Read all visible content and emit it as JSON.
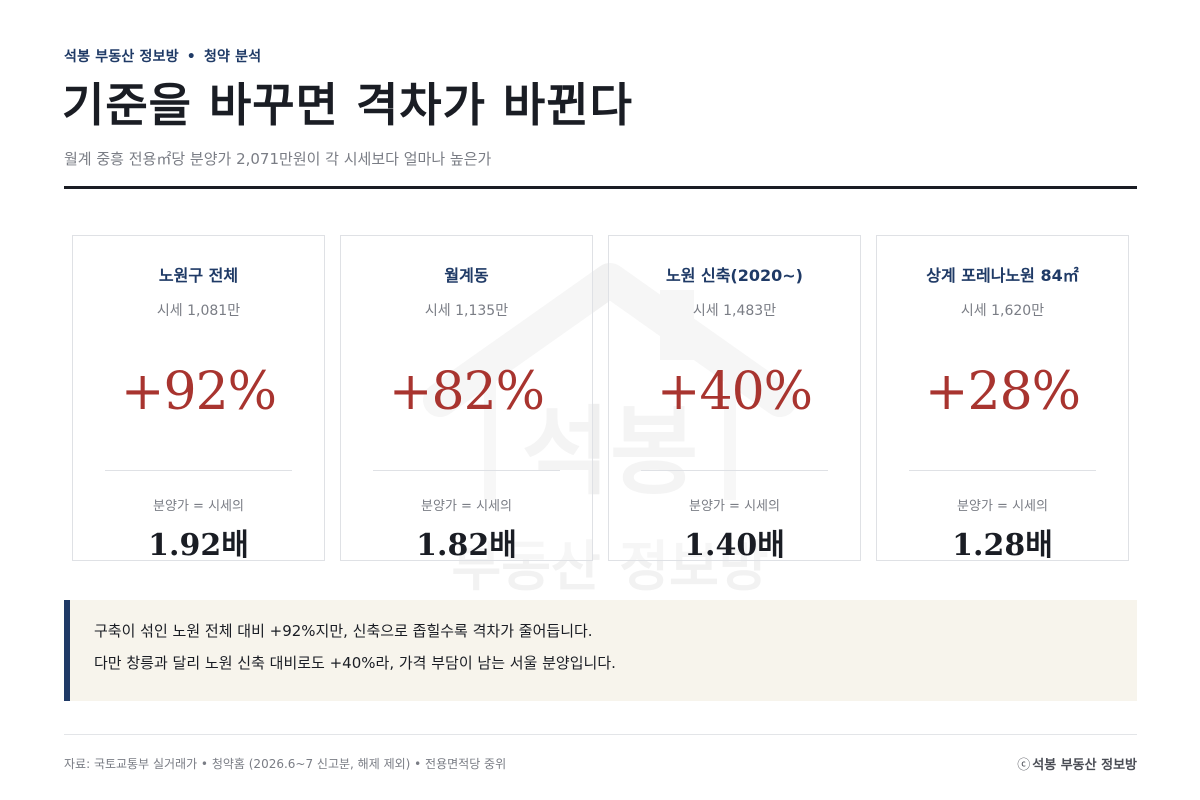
{
  "header": {
    "brand": "석봉 부동산 정보방",
    "separator": "•",
    "section": "청약 분석",
    "title": "기준을 바꾸면 격차가 바뀐다",
    "subtitle": "월계 중흥 전용㎡당 분양가 2,071만원이 각 시세보다 얼마나 높은가"
  },
  "watermark": {
    "line1": "석봉",
    "line2": "부동산 정보방"
  },
  "cards": [
    {
      "name": "노원구 전체",
      "market": "시세 1,081만",
      "premium": "+92%",
      "caption": "분양가 = 시세의",
      "ratio": "1.92배"
    },
    {
      "name": "월계동",
      "market": "시세 1,135만",
      "premium": "+82%",
      "caption": "분양가 = 시세의",
      "ratio": "1.82배"
    },
    {
      "name": "노원 신축(2020~)",
      "market": "시세 1,483만",
      "premium": "+40%",
      "caption": "분양가 = 시세의",
      "ratio": "1.40배"
    },
    {
      "name": "상계 포레나노원 84㎡",
      "market": "시세 1,620만",
      "premium": "+28%",
      "caption": "분양가 = 시세의",
      "ratio": "1.28배"
    }
  ],
  "note": {
    "line1": "구축이 섞인 노원 전체 대비 +92%지만, 신축으로 좁힐수록 격차가 줄어듭니다.",
    "line2": "다만 창릉과 달리 노원 신축 대비로도 +40%라, 가격 부담이 남는 서울 분양입니다."
  },
  "footer": {
    "source": "자료: 국토교통부 실거래가 • 청약홈 (2026.6~7 신고분, 해제 제외)  •  전용면적당 중위",
    "copyright_mark": "ⓒ",
    "brand": "석봉 부동산 정보방"
  },
  "colors": {
    "navy": "#1f3a66",
    "premium_red": "#a8342f",
    "note_bg": "#f7f4ec"
  }
}
